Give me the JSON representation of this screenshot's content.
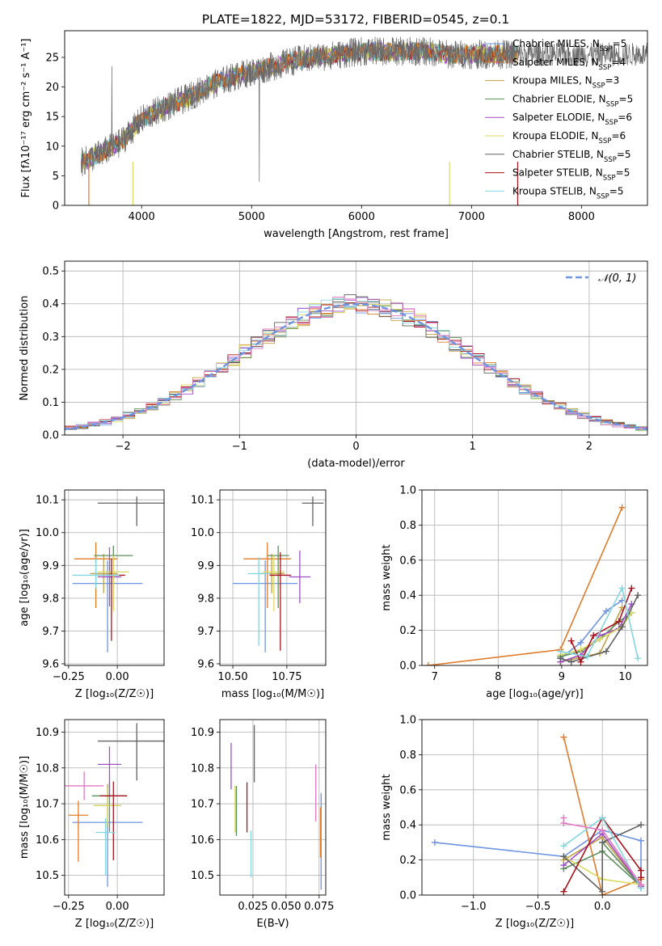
{
  "figure": {
    "title": "PLATE=1822, MJD=53172, FIBERID=0545, z=0.1"
  },
  "colors": [
    "#6f94e0",
    "#e07b2a",
    "#c2a146",
    "#5e8f5e",
    "#a04ec6",
    "#dada62",
    "#606060",
    "#a8131d",
    "#84d6df"
  ],
  "chart_data": [
    {
      "id": "spectrum",
      "type": "line",
      "xlabel": "wavelength [Angstrom, rest frame]",
      "ylabel": "Flux [fλ10⁻¹⁷ erg cm⁻² s⁻¹ A⁻¹]",
      "xlim": [
        3300,
        8600
      ],
      "ylim": [
        0,
        29.5
      ],
      "xticks": [
        4000,
        5000,
        6000,
        7000,
        8000
      ],
      "yticks": [
        0,
        5,
        10,
        15,
        20,
        25
      ],
      "legend_position": "top-right",
      "continuum_x": [
        3450,
        3600,
        3800,
        4000,
        4200,
        4400,
        4600,
        4800,
        5000,
        5200,
        5400,
        5600,
        5800,
        6000,
        6200,
        6400,
        6600,
        6800,
        7000,
        7200,
        7400
      ],
      "continuum_y": [
        7.2,
        8.5,
        10.5,
        14.5,
        16.5,
        18.0,
        20.0,
        21.5,
        22.5,
        23.5,
        24.5,
        25.0,
        25.5,
        26.0,
        26.0,
        26.0,
        26.0,
        25.5,
        25.5,
        25.5,
        25.5
      ],
      "data_x_range": [
        3450,
        7420
      ],
      "series": [
        {
          "name": "Chabrier MILES, N",
          "sub": "SSP",
          "n": "=5"
        },
        {
          "name": "Salpeter MILES, N",
          "sub": "SSP",
          "n": "=4"
        },
        {
          "name": "Kroupa MILES, N",
          "sub": "SSP",
          "n": "=3"
        },
        {
          "name": "Chabrier ELODIE, N",
          "sub": "SSP",
          "n": "=5"
        },
        {
          "name": "Salpeter ELODIE, N",
          "sub": "SSP",
          "n": "=6"
        },
        {
          "name": "Kroupa ELODIE, N",
          "sub": "SSP",
          "n": "=6"
        },
        {
          "name": "Chabrier STELIB, N",
          "sub": "SSP",
          "n": "=5"
        },
        {
          "name": "Salpeter STELIB, N",
          "sub": "SSP",
          "n": "=5"
        },
        {
          "name": "Kroupa STELIB, N",
          "sub": "SSP",
          "n": "=5"
        }
      ]
    },
    {
      "id": "residuals",
      "type": "histogram",
      "xlabel": "(data-model)/error",
      "ylabel": "Normed distribution",
      "xlim": [
        -2.5,
        2.5
      ],
      "ylim": [
        0,
        0.53
      ],
      "xticks": [
        -2,
        -1,
        0,
        1,
        2
      ],
      "xticklabels": [
        "−2",
        "−1",
        "0",
        "1",
        "2"
      ],
      "yticks": [
        0.0,
        0.1,
        0.2,
        0.3,
        0.4,
        0.5
      ],
      "yticklabels": [
        "0.0",
        "0.1",
        "0.2",
        "0.3",
        "0.4",
        "0.5"
      ],
      "legend_label": "𝒩(0, 1)",
      "legend_position": "top-right",
      "bin_width": 0.1,
      "gaussian": {
        "mu": 0,
        "sigma": 1
      }
    },
    {
      "id": "age-vs-z",
      "type": "scatter",
      "xlabel": "Z [log₁₀(Z/Z☉)]",
      "ylabel": "age  [log₁₀(age/yr)]",
      "xlim": [
        -0.27,
        0.24
      ],
      "ylim": [
        9.595,
        10.13
      ],
      "xticks": [
        -0.25,
        0.0
      ],
      "xticklabels": [
        "−0.25",
        "0.00"
      ],
      "yticks": [
        9.6,
        9.7,
        9.8,
        9.9,
        10.0,
        10.1
      ],
      "yticklabels": [
        "9.6",
        "9.7",
        "9.8",
        "9.9",
        "10.0",
        "10.1"
      ],
      "points": [
        {
          "x": -0.05,
          "y": 9.845,
          "xerr": 0.18,
          "yerr_lo": 0.21,
          "yerr_hi": 0.07,
          "c": 0
        },
        {
          "x": -0.11,
          "y": 9.92,
          "xerr": 0.11,
          "yerr_lo": 0.15,
          "yerr_hi": 0.05,
          "c": 1
        },
        {
          "x": -0.07,
          "y": 9.875,
          "xerr": 0.07,
          "yerr_lo": 0.06,
          "yerr_hi": 0.06,
          "c": 2
        },
        {
          "x": -0.02,
          "y": 9.93,
          "xerr": 0.1,
          "yerr_lo": 0.16,
          "yerr_hi": 0.03,
          "c": 3
        },
        {
          "x": -0.04,
          "y": 9.865,
          "xerr": 0.06,
          "yerr_lo": 0.09,
          "yerr_hi": 0.09,
          "c": 4
        },
        {
          "x": -0.02,
          "y": 9.88,
          "xerr": 0.08,
          "yerr_lo": 0.12,
          "yerr_hi": 0.05,
          "c": 5
        },
        {
          "x": 0.1,
          "y": 10.09,
          "xerr": 0.2,
          "yerr_lo": 0.07,
          "yerr_hi": 0.02,
          "c": 6
        },
        {
          "x": -0.03,
          "y": 9.87,
          "xerr": 0.07,
          "yerr_lo": 0.2,
          "yerr_hi": 0.05,
          "c": 7
        },
        {
          "x": -0.11,
          "y": 9.87,
          "xerr": 0.12,
          "yerr_lo": 0.04,
          "yerr_hi": 0.05,
          "c": 8
        }
      ]
    },
    {
      "id": "age-vs-mass",
      "type": "scatter",
      "xlabel": "mass [log₁₀(M/M☉)]",
      "ylabel": "",
      "xlim": [
        10.44,
        10.93
      ],
      "ylim": [
        9.595,
        10.13
      ],
      "xticks": [
        10.5,
        10.75
      ],
      "xticklabels": [
        "10.50",
        "10.75"
      ],
      "yticks": [
        9.6,
        9.7,
        9.8,
        9.9,
        10.0,
        10.1
      ],
      "yticklabels": [
        "9.6",
        "9.7",
        "9.8",
        "9.9",
        "10.0",
        "10.1"
      ],
      "points": [
        {
          "x": 10.65,
          "y": 9.845,
          "xerr": 0.15,
          "yerr_lo": 0.21,
          "yerr_hi": 0.07,
          "c": 0
        },
        {
          "x": 10.66,
          "y": 9.92,
          "xerr": 0.11,
          "yerr_lo": 0.15,
          "yerr_hi": 0.05,
          "c": 1
        },
        {
          "x": 10.68,
          "y": 9.875,
          "xerr": 0.06,
          "yerr_lo": 0.06,
          "yerr_hi": 0.06,
          "c": 2
        },
        {
          "x": 10.71,
          "y": 9.93,
          "xerr": 0.05,
          "yerr_lo": 0.16,
          "yerr_hi": 0.03,
          "c": 3
        },
        {
          "x": 10.81,
          "y": 9.865,
          "xerr": 0.05,
          "yerr_lo": 0.08,
          "yerr_hi": 0.08,
          "c": 4
        },
        {
          "x": 10.69,
          "y": 9.88,
          "xerr": 0.05,
          "yerr_lo": 0.12,
          "yerr_hi": 0.05,
          "c": 5
        },
        {
          "x": 10.87,
          "y": 10.09,
          "xerr": 0.05,
          "yerr_lo": 0.07,
          "yerr_hi": 0.02,
          "c": 6
        },
        {
          "x": 10.72,
          "y": 9.87,
          "xerr": 0.05,
          "yerr_lo": 0.23,
          "yerr_hi": 0.07,
          "c": 7
        },
        {
          "x": 10.62,
          "y": 9.875,
          "xerr": 0.05,
          "yerr_lo": 0.22,
          "yerr_hi": 0.05,
          "c": 8
        }
      ]
    },
    {
      "id": "weight-vs-age",
      "type": "line",
      "xlabel": "age  [log₁₀(age/yr)]",
      "ylabel": "mass weight",
      "xlim": [
        6.8,
        10.35
      ],
      "ylim": [
        0.0,
        1.0
      ],
      "xticks": [
        7,
        8,
        9,
        10
      ],
      "yticks": [
        0.0,
        0.2,
        0.4,
        0.6,
        0.8,
        1.0
      ],
      "yticklabels": [
        "0.0",
        "0.2",
        "0.4",
        "0.6",
        "0.8",
        "1.0"
      ],
      "series": [
        {
          "c": 0,
          "x": [
            8.98,
            9.3,
            9.7,
            9.95
          ],
          "y": [
            0.04,
            0.13,
            0.31,
            0.37
          ]
        },
        {
          "c": 1,
          "x": [
            6.9,
            8.98,
            9.95
          ],
          "y": [
            0.0,
            0.09,
            0.9
          ]
        },
        {
          "c": 2,
          "x": [
            8.98,
            9.6,
            9.95
          ],
          "y": [
            0.02,
            0.07,
            0.33
          ]
        },
        {
          "c": 3,
          "x": [
            8.98,
            9.3,
            9.6,
            9.9,
            10.1
          ],
          "y": [
            0.05,
            0.08,
            0.15,
            0.25,
            0.3
          ]
        },
        {
          "c": 4,
          "x": [
            8.98,
            9.3,
            9.6,
            9.9,
            10.1
          ],
          "y": [
            0.02,
            0.06,
            0.17,
            0.21,
            0.35
          ]
        },
        {
          "c": 5,
          "x": [
            8.98,
            9.3,
            9.6,
            9.95,
            10.1
          ],
          "y": [
            0.06,
            0.09,
            0.15,
            0.22,
            0.3
          ]
        },
        {
          "c": 6,
          "x": [
            8.98,
            9.15,
            9.7,
            9.95,
            10.2
          ],
          "y": [
            0.04,
            0.02,
            0.08,
            0.22,
            0.4
          ]
        },
        {
          "c": 7,
          "x": [
            9.15,
            9.3,
            9.5,
            9.9,
            10.1
          ],
          "y": [
            0.14,
            0.02,
            0.17,
            0.25,
            0.44
          ]
        },
        {
          "c": 8,
          "x": [
            8.98,
            9.4,
            9.95,
            10.2
          ],
          "y": [
            0.08,
            0.05,
            0.44,
            0.04
          ]
        }
      ]
    },
    {
      "id": "mass-vs-z",
      "type": "scatter",
      "xlabel": "Z [log₁₀(Z/Z☉)]",
      "ylabel": "mass [log₁₀(M/M☉)]",
      "xlim": [
        -0.27,
        0.24
      ],
      "ylim": [
        10.445,
        10.935
      ],
      "xticks": [
        -0.25,
        0.0
      ],
      "xticklabels": [
        "−0.25",
        "0.00"
      ],
      "yticks": [
        10.5,
        10.6,
        10.7,
        10.8,
        10.9
      ],
      "yticklabels": [
        "10.5",
        "10.6",
        "10.7",
        "10.8",
        "10.9"
      ],
      "points": [
        {
          "x": -0.05,
          "y": 10.648,
          "xerr": 0.18,
          "yerr_lo": 0.18,
          "yerr_hi": 0.1,
          "c": 0
        },
        {
          "x": -0.2,
          "y": 10.668,
          "xerr": 0.05,
          "yerr_lo": 0.13,
          "yerr_hi": 0.04,
          "c": 1
        },
        {
          "x": -0.05,
          "y": 10.695,
          "xerr": 0.07,
          "yerr_lo": 0.06,
          "yerr_hi": 0.06,
          "c": 2
        },
        {
          "x": -0.04,
          "y": 10.722,
          "xerr": 0.09,
          "yerr_lo": 0.1,
          "yerr_hi": 0.04,
          "c": 3
        },
        {
          "x": -0.04,
          "y": 10.81,
          "xerr": 0.06,
          "yerr_lo": 0.09,
          "yerr_hi": 0.05,
          "c": 4
        },
        {
          "x": -0.05,
          "y": 10.695,
          "xerr": 0.07,
          "yerr_lo": 0.05,
          "yerr_hi": 0.05,
          "c": 5
        },
        {
          "x": 0.1,
          "y": 10.875,
          "xerr": 0.2,
          "yerr_lo": 0.11,
          "yerr_hi": 0.05,
          "c": 6
        },
        {
          "x": -0.02,
          "y": 10.722,
          "xerr": 0.07,
          "yerr_lo": 0.18,
          "yerr_hi": 0.04,
          "c": 7
        },
        {
          "x": -0.06,
          "y": 10.62,
          "xerr": 0.05,
          "yerr_lo": 0.12,
          "yerr_hi": 0.04,
          "c": 8
        },
        {
          "x": -0.17,
          "y": 10.75,
          "xerr": 0.1,
          "yerr_lo": 0.04,
          "yerr_hi": 0.04,
          "c": 9
        }
      ]
    },
    {
      "id": "mass-vs-ebv",
      "type": "scatter",
      "xlabel": "E(B-V)",
      "ylabel": "",
      "xlim": [
        0.0,
        0.08
      ],
      "ylim": [
        10.445,
        10.935
      ],
      "xticks": [
        0.025,
        0.05,
        0.075
      ],
      "xticklabels": [
        "0.025",
        "0.050",
        "0.075"
      ],
      "yticks": [
        10.5,
        10.6,
        10.7,
        10.8,
        10.9
      ],
      "yticklabels": [
        "10.5",
        "10.6",
        "10.7",
        "10.8",
        "10.9"
      ],
      "points": [
        {
          "x": 0.0765,
          "y": 10.6,
          "xerr": 0,
          "yerr_lo": 0.14,
          "yerr_hi": 0.13,
          "c": 0
        },
        {
          "x": 0.076,
          "y": 10.63,
          "xerr": 0,
          "yerr_lo": 0.08,
          "yerr_hi": 0.06,
          "c": 1
        },
        {
          "x": 0.0125,
          "y": 10.68,
          "xerr": 0,
          "yerr_lo": 0.06,
          "yerr_hi": 0.06,
          "c": 2
        },
        {
          "x": 0.0125,
          "y": 10.68,
          "xerr": 0,
          "yerr_lo": 0.07,
          "yerr_hi": 0.07,
          "c": 3
        },
        {
          "x": 0.0085,
          "y": 10.8,
          "xerr": 0,
          "yerr_lo": 0.06,
          "yerr_hi": 0.07,
          "c": 4
        },
        {
          "x": 0.0115,
          "y": 10.68,
          "xerr": 0,
          "yerr_lo": 0.06,
          "yerr_hi": 0.07,
          "c": 5
        },
        {
          "x": 0.026,
          "y": 10.84,
          "xerr": 0,
          "yerr_lo": 0.08,
          "yerr_hi": 0.08,
          "c": 6
        },
        {
          "x": 0.0205,
          "y": 10.67,
          "xerr": 0,
          "yerr_lo": 0.05,
          "yerr_hi": 0.09,
          "c": 7
        },
        {
          "x": 0.0235,
          "y": 10.56,
          "xerr": 0,
          "yerr_lo": 0.065,
          "yerr_hi": 0.065,
          "c": 8
        },
        {
          "x": 0.0725,
          "y": 10.73,
          "xerr": 0,
          "yerr_lo": 0.08,
          "yerr_hi": 0.08,
          "c": 9
        }
      ]
    },
    {
      "id": "weight-vs-z",
      "type": "line",
      "xlabel": "Z [log₁₀(Z/Z☉)]",
      "ylabel": "mass weight",
      "xlim": [
        -1.4,
        0.35
      ],
      "ylim": [
        0.0,
        1.0
      ],
      "xticks": [
        -1.0,
        -0.5,
        0.0
      ],
      "xticklabels": [
        "−1.0",
        "−0.5",
        "0.0"
      ],
      "yticks": [
        0.0,
        0.2,
        0.4,
        0.6,
        0.8,
        1.0
      ],
      "yticklabels": [
        "0.0",
        "0.2",
        "0.4",
        "0.6",
        "0.8",
        "1.0"
      ],
      "series": [
        {
          "c": 0,
          "x": [
            -1.3,
            -0.3,
            0.0,
            0.3,
            0.3
          ],
          "y": [
            0.3,
            0.22,
            0.37,
            0.31,
            0.04
          ]
        },
        {
          "c": 1,
          "x": [
            -0.3,
            0.0,
            0.3
          ],
          "y": [
            0.9,
            0.0,
            0.09
          ]
        },
        {
          "c": 2,
          "x": [
            -0.3,
            0.0,
            0.3
          ],
          "y": [
            0.2,
            0.33,
            0.05
          ]
        },
        {
          "c": 3,
          "x": [
            -0.3,
            0.0,
            0.3,
            0.0
          ],
          "y": [
            0.15,
            0.25,
            0.05,
            0.3
          ]
        },
        {
          "c": 4,
          "x": [
            -0.3,
            0.0,
            0.3
          ],
          "y": [
            0.17,
            0.35,
            0.05
          ]
        },
        {
          "c": 5,
          "x": [
            -0.3,
            0.0,
            0.3
          ],
          "y": [
            0.22,
            0.09,
            0.06
          ]
        },
        {
          "c": 6,
          "x": [
            -0.3,
            0.0,
            0.0,
            0.3
          ],
          "y": [
            0.22,
            0.02,
            0.3,
            0.4
          ]
        },
        {
          "c": 7,
          "x": [
            -0.3,
            0.0,
            0.3,
            0.3
          ],
          "y": [
            0.02,
            0.44,
            0.14,
            0.1
          ]
        },
        {
          "c": 8,
          "x": [
            -0.3,
            0.0,
            0.3
          ],
          "y": [
            0.28,
            0.44,
            0.04
          ]
        },
        {
          "c": 9,
          "x": [
            -0.3,
            -0.3,
            0.0,
            0.3
          ],
          "y": [
            0.44,
            0.41,
            0.37,
            0.06
          ]
        }
      ]
    }
  ]
}
